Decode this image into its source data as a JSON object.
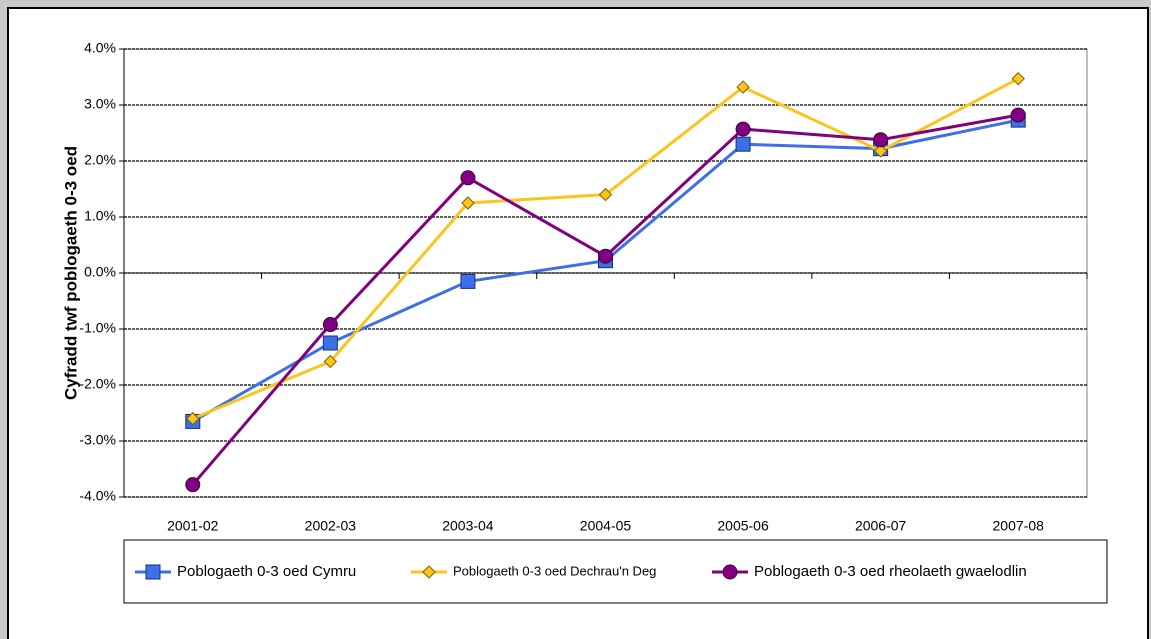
{
  "chart_data": {
    "type": "line",
    "ylabel": "Cyfradd twf poblogaeth 0-3 oed",
    "categories": [
      "2001-02",
      "2002-03",
      "2003-04",
      "2004-05",
      "2005-06",
      "2006-07",
      "2007-08"
    ],
    "series": [
      {
        "name": "Poblogaeth 0-3 oed Cymru",
        "color": "#3d6fe8",
        "marker": "square",
        "values": [
          -2.65,
          -1.25,
          -0.15,
          0.22,
          2.3,
          2.22,
          2.73
        ]
      },
      {
        "name": "Poblogaeth 0-3 oed Dechrau'n Deg",
        "color": "#fcc41c",
        "marker": "diamond",
        "values": [
          -2.6,
          -1.58,
          1.25,
          1.4,
          3.32,
          2.18,
          3.47
        ]
      },
      {
        "name": "Poblogaeth 0-3 oed rheolaeth gwaelodlin",
        "color": "#800080",
        "marker": "circle",
        "values": [
          -3.78,
          -0.92,
          1.7,
          0.3,
          2.57,
          2.38,
          2.82
        ]
      }
    ],
    "ylim": [
      -4,
      4
    ],
    "yticks": [
      {
        "value": -4,
        "label": "-4.0%"
      },
      {
        "value": -3,
        "label": "-3.0%"
      },
      {
        "value": -2,
        "label": "-2.0%"
      },
      {
        "value": -1,
        "label": "-1.0%"
      },
      {
        "value": 0,
        "label": "0.0%"
      },
      {
        "value": 1,
        "label": "1.0%"
      },
      {
        "value": 2,
        "label": "2.0%"
      },
      {
        "value": 3,
        "label": "3.0%"
      },
      {
        "value": 4,
        "label": "4.0%"
      }
    ],
    "grid": true,
    "legend": "bottom"
  }
}
